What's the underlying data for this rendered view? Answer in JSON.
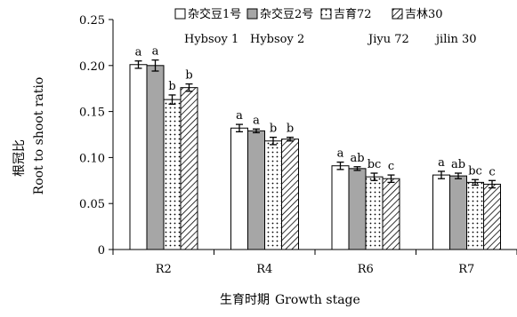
{
  "chart_data": {
    "type": "bar",
    "categories": [
      "R2",
      "R4",
      "R6",
      "R7"
    ],
    "ylabel_cn": "根冠比",
    "ylabel_en": "Root to shoot ratio",
    "xlabel_cn": "生育时期",
    "xlabel_en": "Growth stage",
    "ylim": [
      0,
      0.25
    ],
    "yticks": [
      "0",
      "0.05",
      "0.10",
      "0.15",
      "0.20",
      "0.25"
    ],
    "legend_position": "top-right",
    "series": [
      {
        "name_cn": "杂交豆1号",
        "name_en": "Hybsoy 1",
        "pattern": "white",
        "values": [
          0.201,
          0.132,
          0.091,
          0.081
        ],
        "errors": [
          0.004,
          0.004,
          0.004,
          0.004
        ],
        "letters": [
          "a",
          "a",
          "a",
          "a"
        ]
      },
      {
        "name_cn": "杂交豆2号",
        "name_en": "Hybsoy 2",
        "pattern": "gray",
        "values": [
          0.2,
          0.129,
          0.088,
          0.08
        ],
        "errors": [
          0.006,
          0.002,
          0.002,
          0.003
        ],
        "letters": [
          "a",
          "a",
          "ab",
          "ab"
        ]
      },
      {
        "name_cn": "吉育72",
        "name_en": "Jiyu 72",
        "pattern": "dots",
        "values": [
          0.163,
          0.118,
          0.079,
          0.073
        ],
        "errors": [
          0.005,
          0.004,
          0.004,
          0.003
        ],
        "letters": [
          "b",
          "b",
          "bc",
          "bc"
        ]
      },
      {
        "name_cn": "吉林30",
        "name_en": "jilin 30",
        "pattern": "hatch",
        "values": [
          0.176,
          0.12,
          0.077,
          0.071
        ],
        "errors": [
          0.004,
          0.002,
          0.004,
          0.004
        ],
        "letters": [
          "b",
          "b",
          "c",
          "c"
        ]
      }
    ]
  }
}
